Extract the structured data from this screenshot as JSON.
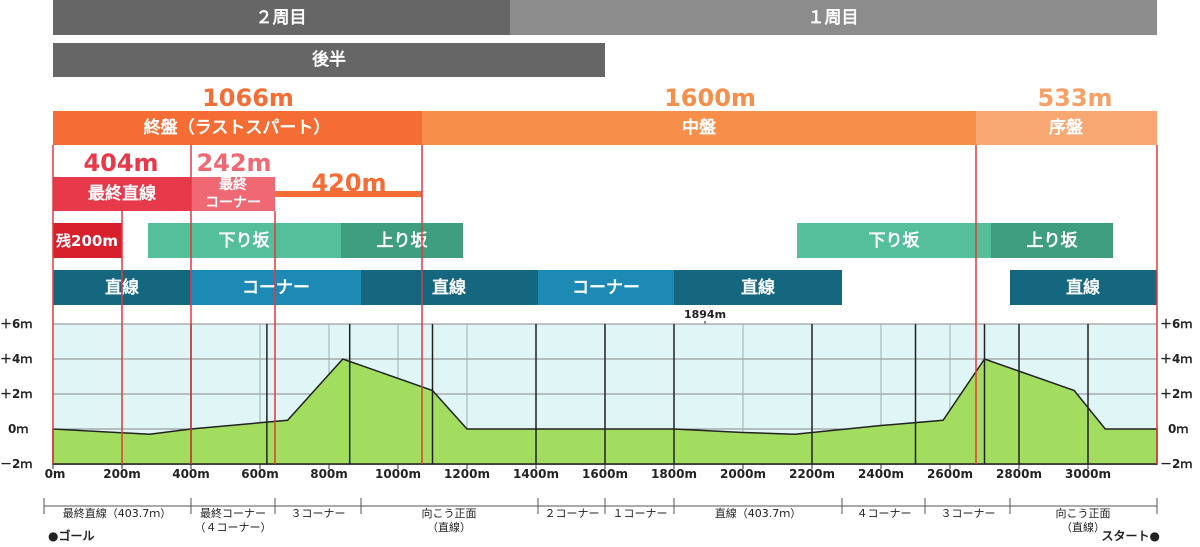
{
  "laps": {
    "lap2": "２周目",
    "lap1": "１周目"
  },
  "half": "後半",
  "phases": [
    {
      "label": "終盤（ラストスパート）",
      "distance": "1066m",
      "color": "#f56d35",
      "dist_color": "#f56d35"
    },
    {
      "label": "中盤",
      "distance": "1600m",
      "color": "#f78f4b",
      "dist_color": "#f78f4b"
    },
    {
      "label": "序盤",
      "distance": "533m",
      "color": "#f8a672",
      "dist_color": "#f6a068"
    }
  ],
  "sub_phases": {
    "final_straight": {
      "label": "最終直線",
      "distance": "404m"
    },
    "final_corner": {
      "label_line1": "最終",
      "label_line2": "コーナー",
      "distance": "242m"
    },
    "pre_corner": {
      "distance": "420m"
    },
    "last200": "残200m"
  },
  "slopes": [
    {
      "label": "下り坂"
    },
    {
      "label": "上り坂"
    },
    {
      "label": "下り坂"
    },
    {
      "label": "上り坂"
    }
  ],
  "track_types": [
    {
      "label": "直線"
    },
    {
      "label": "コーナー"
    },
    {
      "label": "直線"
    },
    {
      "label": "コーナー"
    },
    {
      "label": "直線"
    },
    {
      "label": "直線"
    }
  ],
  "marker_1894": "1894m",
  "y_labels": [
    "＋6ｍ",
    "＋4ｍ",
    "＋2ｍ",
    "0ｍ",
    "－2ｍ"
  ],
  "chart_data": {
    "type": "area",
    "x_tick_labels": [
      "0m",
      "200m",
      "400m",
      "600m",
      "800m",
      "1000m",
      "1200m",
      "1400m",
      "1600m",
      "1800m",
      "2000m",
      "2200m",
      "2400m",
      "2600m",
      "2800m",
      "3000m"
    ],
    "x_range": [
      0,
      3200
    ],
    "y_range": [
      -2,
      6
    ],
    "elevation": {
      "x": [
        0,
        280,
        400,
        680,
        840,
        1100,
        1200,
        1400,
        1800,
        2000,
        2150,
        2400,
        2580,
        2700,
        2960,
        3050,
        3200
      ],
      "y": [
        0,
        -0.3,
        0,
        0.5,
        4,
        2.2,
        0,
        0,
        0,
        -0.2,
        -0.3,
        0.2,
        0.5,
        4,
        2.2,
        0,
        0
      ]
    },
    "segment_dividers_m": [
      400,
      620,
      860,
      1100,
      1400,
      1600,
      1800,
      2200,
      2500,
      2700,
      2800,
      3000
    ]
  },
  "segments": [
    {
      "line1": "最終直線（403.7ｍ）",
      "line2": ""
    },
    {
      "line1": "最終コーナー",
      "line2": "（４コーナー）"
    },
    {
      "line1": "３コーナー",
      "line2": ""
    },
    {
      "line1": "向こう正面",
      "line2": "（直線）"
    },
    {
      "line1": "２コーナー",
      "line2": ""
    },
    {
      "line1": "１コーナー",
      "line2": ""
    },
    {
      "line1": "直線（403.7ｍ）",
      "line2": ""
    },
    {
      "line1": "４コーナー",
      "line2": ""
    },
    {
      "line1": "３コーナー",
      "line2": ""
    },
    {
      "line1": "向こう正面",
      "line2": "（直線）"
    }
  ],
  "goal_label": "●ゴール",
  "start_label": "スタート●",
  "colors": {
    "lap2": "#666666",
    "lap1": "#8c8c8c",
    "half": "#666666",
    "final_straight": "#e8394a",
    "final_corner": "#ef6874",
    "last200": "#d81f2c",
    "slope_down": "#55bf9b",
    "slope_up": "#3f9e7f",
    "straight": "#15677f",
    "corner": "#1d8ab5",
    "plot_bg": "#e0f5f5",
    "fill": "#a3dd5f",
    "red_line": "#e33a3a"
  }
}
